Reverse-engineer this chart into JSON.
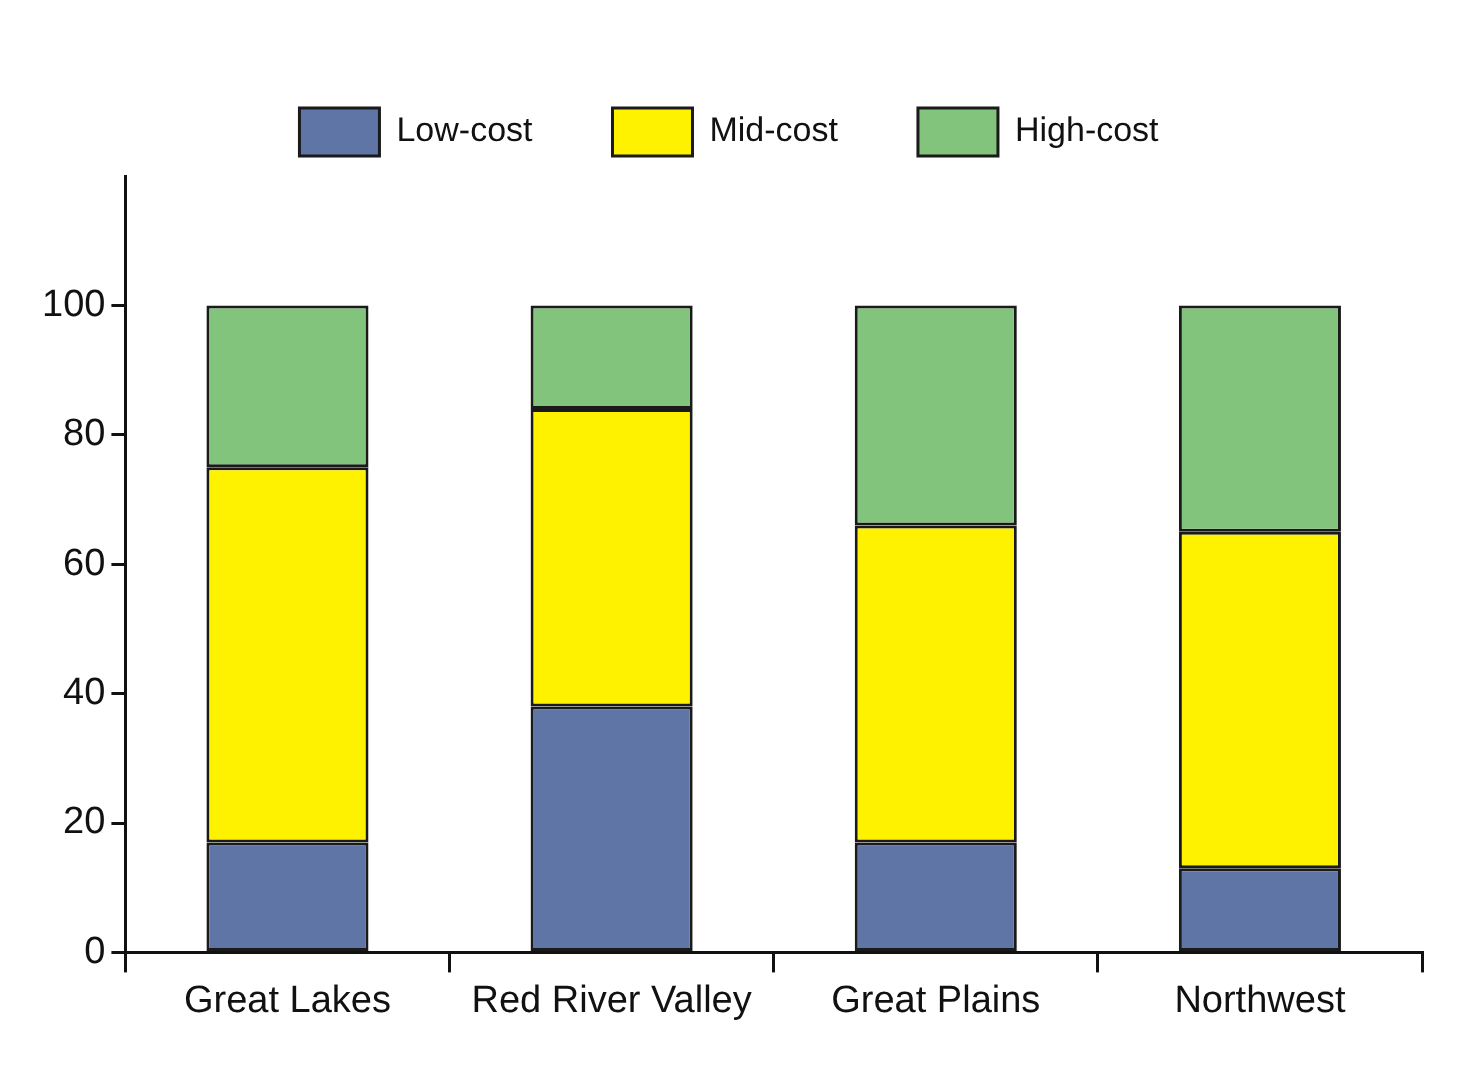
{
  "chart_data": {
    "type": "bar",
    "stacked": true,
    "categories": [
      "Great Lakes",
      "Red River Valley",
      "Great Plains",
      "Northwest"
    ],
    "series": [
      {
        "name": "Low-cost",
        "color": "#5f75a6",
        "values": [
          17,
          38,
          17,
          13
        ]
      },
      {
        "name": "Mid-cost",
        "color": "#fff200",
        "values": [
          58,
          46,
          49,
          52
        ]
      },
      {
        "name": "High-cost",
        "color": "#83c47c",
        "values": [
          25,
          16,
          34,
          35
        ]
      }
    ],
    "ylim": [
      0,
      120
    ],
    "yticks": [
      0,
      20,
      40,
      60,
      80,
      100
    ],
    "grid": false,
    "legend": "top"
  }
}
